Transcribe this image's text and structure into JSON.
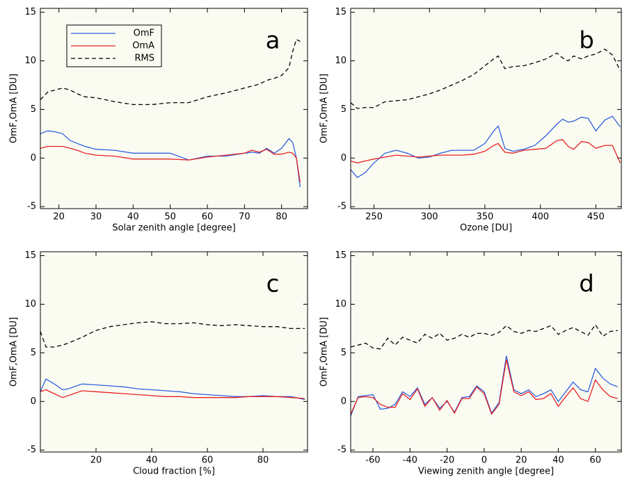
{
  "chart_data": [
    {
      "type": "line",
      "annotation": "a",
      "xlabel": "Solar zenith angle [degree]",
      "ylabel": "OmF,OmA [DU]",
      "xlim": [
        15,
        87
      ],
      "ylim": [
        -5.2,
        15.4
      ],
      "xticks": [
        20,
        30,
        40,
        50,
        60,
        70,
        80
      ],
      "yticks": [
        -5,
        0,
        5,
        10,
        15
      ],
      "legend": "upper left",
      "x": [
        15,
        17,
        19,
        21,
        23,
        25,
        27,
        30,
        35,
        40,
        45,
        50,
        55,
        60,
        65,
        70,
        72,
        74,
        76,
        78,
        80,
        82,
        83,
        84,
        85
      ],
      "series": [
        {
          "name": "OmF",
          "color": "#2f5fe0",
          "linestyle": "solid",
          "values": [
            2.5,
            2.8,
            2.7,
            2.5,
            1.8,
            1.5,
            1.2,
            0.9,
            0.8,
            0.5,
            0.5,
            0.5,
            -0.2,
            0.2,
            0.2,
            0.5,
            0.6,
            0.5,
            1.0,
            0.5,
            1.0,
            2.0,
            1.6,
            0,
            -3.0
          ]
        },
        {
          "name": "OmA",
          "color": "#e82020",
          "linestyle": "solid",
          "values": [
            1.0,
            1.2,
            1.2,
            1.2,
            1.0,
            0.8,
            0.5,
            0.3,
            0.2,
            -0.1,
            -0.1,
            -0.1,
            -0.2,
            0.1,
            0.3,
            0.5,
            0.8,
            0.6,
            0.9,
            0.4,
            0.4,
            0.6,
            0.5,
            0,
            -2.5
          ]
        },
        {
          "name": "RMS",
          "color": "#000000",
          "linestyle": "dashed",
          "values": [
            6.0,
            6.8,
            7.0,
            7.2,
            7.0,
            6.6,
            6.3,
            6.2,
            5.8,
            5.5,
            5.5,
            5.7,
            5.7,
            6.3,
            6.7,
            7.2,
            7.4,
            7.6,
            8.0,
            8.2,
            8.5,
            9.3,
            11.0,
            12.2,
            12.0
          ]
        }
      ]
    },
    {
      "type": "line",
      "annotation": "b",
      "xlabel": "Ozone [DU]",
      "ylabel": "OmF,OmA [DU]",
      "xlim": [
        229,
        473
      ],
      "ylim": [
        -5.2,
        15.4
      ],
      "xticks": [
        250,
        300,
        350,
        400,
        450
      ],
      "yticks": [
        -5,
        0,
        5,
        10,
        15
      ],
      "x": [
        229,
        235,
        242,
        250,
        260,
        270,
        280,
        290,
        300,
        310,
        320,
        330,
        340,
        350,
        358,
        362,
        368,
        375,
        385,
        395,
        405,
        415,
        420,
        425,
        430,
        437,
        443,
        450,
        458,
        465,
        472
      ],
      "series": [
        {
          "name": "OmF",
          "color": "#2f5fe0",
          "linestyle": "solid",
          "values": [
            -1.2,
            -2.0,
            -1.5,
            -0.5,
            0.5,
            0.8,
            0.5,
            0,
            0.1,
            0.5,
            0.8,
            0.8,
            0.8,
            1.5,
            2.8,
            3.3,
            1.0,
            0.7,
            0.9,
            1.3,
            2.3,
            3.5,
            4.0,
            3.7,
            3.8,
            4.2,
            4.1,
            2.8,
            3.9,
            4.3,
            3.2
          ]
        },
        {
          "name": "OmA",
          "color": "#e82020",
          "linestyle": "solid",
          "values": [
            -0.3,
            -0.5,
            -0.3,
            -0.1,
            0.1,
            0.3,
            0.2,
            0.1,
            0.2,
            0.3,
            0.3,
            0.3,
            0.4,
            0.7,
            1.3,
            1.5,
            0.6,
            0.5,
            0.8,
            0.9,
            1.0,
            1.8,
            1.9,
            1.2,
            0.9,
            1.7,
            1.6,
            1.0,
            1.3,
            1.3,
            -0.5
          ]
        },
        {
          "name": "RMS",
          "color": "#000000",
          "linestyle": "dashed",
          "values": [
            5.7,
            5.1,
            5.2,
            5.2,
            5.8,
            5.9,
            6.0,
            6.3,
            6.6,
            7.0,
            7.5,
            8.0,
            8.6,
            9.5,
            10.2,
            10.5,
            9.2,
            9.4,
            9.5,
            9.8,
            10.2,
            10.8,
            10.3,
            10.0,
            10.5,
            10.2,
            10.5,
            10.7,
            11.2,
            10.6,
            9.0
          ]
        }
      ]
    },
    {
      "type": "line",
      "annotation": "c",
      "xlabel": "Cloud fraction [%]",
      "ylabel": "OmF,OmA [DU]",
      "xlim": [
        0,
        96
      ],
      "ylim": [
        -5.2,
        15.4
      ],
      "xticks": [
        20,
        40,
        60,
        80
      ],
      "yticks": [
        -5,
        0,
        5,
        10,
        15
      ],
      "x": [
        0,
        2,
        5,
        8,
        10,
        15,
        20,
        25,
        30,
        35,
        40,
        45,
        50,
        55,
        60,
        65,
        70,
        75,
        80,
        85,
        90,
        95
      ],
      "series": [
        {
          "name": "OmF",
          "color": "#2f5fe0",
          "linestyle": "solid",
          "values": [
            1.0,
            2.3,
            1.8,
            1.2,
            1.3,
            1.8,
            1.7,
            1.6,
            1.5,
            1.3,
            1.2,
            1.1,
            1.0,
            0.8,
            0.7,
            0.6,
            0.5,
            0.5,
            0.6,
            0.5,
            0.5,
            0.2
          ]
        },
        {
          "name": "OmA",
          "color": "#e82020",
          "linestyle": "solid",
          "values": [
            1.0,
            1.2,
            0.8,
            0.4,
            0.6,
            1.1,
            1.0,
            0.9,
            0.8,
            0.7,
            0.6,
            0.5,
            0.5,
            0.4,
            0.4,
            0.4,
            0.4,
            0.5,
            0.5,
            0.5,
            0.4,
            0.3
          ]
        },
        {
          "name": "RMS",
          "color": "#000000",
          "linestyle": "dashed",
          "values": [
            7.2,
            5.6,
            5.6,
            5.8,
            6.0,
            6.6,
            7.3,
            7.7,
            7.9,
            8.1,
            8.2,
            8.0,
            8.0,
            8.1,
            7.9,
            7.8,
            7.9,
            7.8,
            7.7,
            7.7,
            7.5,
            7.5
          ]
        }
      ]
    },
    {
      "type": "line",
      "annotation": "d",
      "xlabel": "Viewing zenith angle [degree]",
      "ylabel": "OmF,OmA [DU]",
      "xlim": [
        -72,
        74
      ],
      "ylim": [
        -5.2,
        15.4
      ],
      "xticks": [
        -60,
        -40,
        -20,
        0,
        20,
        40,
        60
      ],
      "yticks": [
        -5,
        0,
        5,
        10,
        15
      ],
      "x": [
        -72,
        -68,
        -64,
        -60,
        -56,
        -52,
        -48,
        -44,
        -40,
        -36,
        -32,
        -28,
        -24,
        -20,
        -16,
        -12,
        -8,
        -4,
        0,
        4,
        8,
        12,
        16,
        20,
        24,
        28,
        32,
        36,
        40,
        44,
        48,
        52,
        56,
        60,
        64,
        68,
        72
      ],
      "series": [
        {
          "name": "OmF",
          "color": "#2f5fe0",
          "linestyle": "solid",
          "values": [
            -1.5,
            0.5,
            0.6,
            0.7,
            -0.8,
            -0.7,
            -0.3,
            1.0,
            0.5,
            1.4,
            -0.3,
            0.4,
            -0.7,
            0,
            -1.1,
            0.4,
            0.5,
            1.6,
            1.0,
            -1.2,
            -0.1,
            4.7,
            1.2,
            0.8,
            1.2,
            0.5,
            0.8,
            1.2,
            0,
            1.0,
            2.0,
            1.2,
            1.0,
            3.4,
            2.4,
            1.8,
            1.5
          ]
        },
        {
          "name": "OmA",
          "color": "#e82020",
          "linestyle": "solid",
          "values": [
            -1.3,
            0.4,
            0.5,
            0.4,
            -0.3,
            -0.6,
            -0.6,
            0.8,
            0.2,
            1.3,
            -0.5,
            0.4,
            -0.9,
            0.1,
            -1.2,
            0.3,
            0.3,
            1.5,
            0.8,
            -1.3,
            -0.3,
            4.3,
            1.0,
            0.6,
            1.0,
            0.2,
            0.3,
            0.8,
            -0.5,
            0.5,
            1.4,
            0.3,
            0.0,
            2.2,
            1.2,
            0.5,
            0.3
          ]
        },
        {
          "name": "RMS",
          "color": "#000000",
          "linestyle": "dashed",
          "values": [
            5.6,
            5.8,
            6.0,
            5.5,
            5.4,
            6.5,
            5.8,
            6.6,
            6.3,
            6.0,
            6.9,
            6.5,
            7.0,
            6.3,
            6.5,
            6.9,
            6.6,
            7.0,
            7.0,
            6.8,
            7.1,
            7.8,
            7.2,
            7.0,
            7.3,
            7.2,
            7.5,
            7.8,
            6.9,
            7.3,
            7.6,
            7.2,
            6.8,
            7.9,
            6.7,
            7.2,
            7.3
          ]
        }
      ]
    }
  ]
}
